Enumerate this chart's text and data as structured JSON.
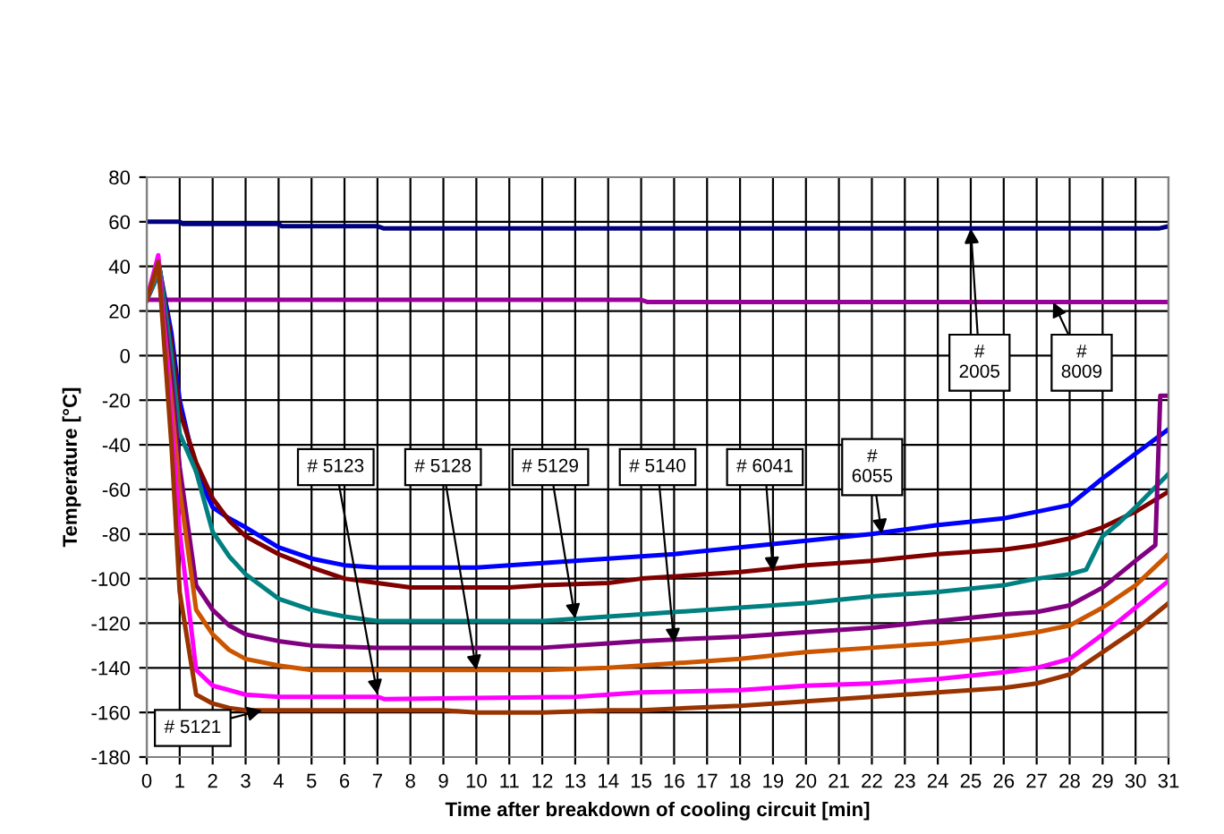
{
  "chart_data": {
    "type": "line",
    "xlabel": "Time after breakdown of cooling circuit [min]",
    "ylabel": "Temperature [°C]",
    "xlim": [
      0,
      31
    ],
    "xticks": [
      0,
      1,
      2,
      3,
      4,
      5,
      6,
      7,
      8,
      9,
      10,
      11,
      12,
      13,
      14,
      15,
      16,
      17,
      18,
      19,
      20,
      21,
      22,
      23,
      24,
      25,
      26,
      27,
      28,
      29,
      30,
      31
    ],
    "ylim": [
      -180,
      80
    ],
    "yticks": [
      -180,
      -160,
      -140,
      -120,
      -100,
      -80,
      -60,
      -40,
      -20,
      0,
      20,
      40,
      60,
      80
    ],
    "grid": true,
    "legend": false,
    "marker": "none",
    "line_style": "solid",
    "series": [
      {
        "color": "#000080",
        "x": [
          0,
          1,
          1.1,
          4,
          4.1,
          7,
          7.2,
          30.7,
          31
        ],
        "values": [
          60,
          60,
          59,
          59,
          58,
          58,
          57,
          57,
          58
        ]
      },
      {
        "color": "#990099",
        "x": [
          0,
          15,
          15.2,
          31
        ],
        "values": [
          25,
          25,
          24,
          24
        ]
      },
      {
        "color": "#0000ff",
        "x": [
          0,
          0.4,
          0.75,
          1,
          1.5,
          2,
          2.5,
          3,
          4,
          5,
          6,
          7,
          10,
          12,
          14,
          16,
          20,
          22,
          24,
          26,
          27,
          28,
          29,
          30,
          31
        ],
        "values": [
          25,
          38,
          10,
          -20,
          -52,
          -68,
          -73,
          -77,
          -86,
          -91,
          -94,
          -95,
          -95,
          -93,
          -91,
          -89,
          -83,
          -80,
          -76,
          -73,
          -70,
          -67,
          -55,
          -44,
          -33
        ]
      },
      {
        "color": "#800000",
        "x": [
          0,
          0.35,
          0.75,
          1,
          1.5,
          2,
          2.5,
          3,
          4,
          5,
          6,
          7,
          8,
          11,
          12,
          14,
          15,
          18,
          20,
          22,
          24,
          26,
          27,
          28,
          29,
          30,
          31
        ],
        "values": [
          25,
          43,
          5,
          -25,
          -48,
          -64,
          -74,
          -81,
          -89,
          -95,
          -100,
          -102,
          -104,
          -104,
          -103,
          -102,
          -100,
          -97,
          -94,
          -92,
          -89,
          -87,
          -85,
          -82,
          -77,
          -70,
          -61
        ]
      },
      {
        "color": "#008080",
        "x": [
          0,
          0.4,
          0.75,
          1,
          1.5,
          2,
          2.5,
          3,
          4,
          5,
          6,
          7,
          10,
          12,
          14,
          15,
          18,
          20,
          22,
          24,
          26,
          27,
          28,
          28.5,
          29,
          29.5,
          30,
          31
        ],
        "values": [
          25,
          38,
          0,
          -35,
          -52,
          -79,
          -90,
          -98,
          -109,
          -114,
          -117,
          -119,
          -119,
          -119,
          -117,
          -116,
          -113,
          -111,
          -108,
          -106,
          -103,
          -100,
          -98,
          -96,
          -81,
          -75,
          -68,
          -53
        ]
      },
      {
        "color": "#800080",
        "x": [
          0,
          0.35,
          0.75,
          1,
          1.5,
          2,
          2.5,
          3,
          4,
          5,
          7,
          12,
          14,
          15,
          18,
          20,
          22,
          24,
          26,
          27,
          28,
          29,
          30,
          30.6,
          30.75,
          31
        ],
        "values": [
          25,
          40,
          -10,
          -50,
          -103,
          -114,
          -121,
          -125,
          -128,
          -130,
          -131,
          -131,
          -129,
          -128,
          -126,
          -124,
          -122,
          -119,
          -116,
          -115,
          -112,
          -104,
          -92,
          -85,
          -18,
          -18
        ]
      },
      {
        "color": "#cc5500",
        "x": [
          0,
          0.35,
          0.75,
          1,
          1.5,
          2,
          2.5,
          3,
          4,
          5,
          7,
          12,
          14,
          15,
          18,
          20,
          22,
          24,
          26,
          27,
          28,
          29,
          30,
          31
        ],
        "values": [
          25,
          40,
          -20,
          -60,
          -114,
          -125,
          -132,
          -136,
          -139,
          -141,
          -141,
          -141,
          -140,
          -139,
          -136,
          -133,
          -131,
          -129,
          -126,
          -124,
          -121,
          -113,
          -103,
          -89
        ]
      },
      {
        "color": "#ff00ff",
        "x": [
          0,
          0.35,
          0.75,
          1,
          1.5,
          2,
          3,
          4,
          7,
          7.2,
          13,
          14,
          15,
          18,
          20,
          22,
          24,
          26,
          27,
          28,
          29,
          30,
          31
        ],
        "values": [
          25,
          45,
          -30,
          -79,
          -141,
          -148,
          -152,
          -153,
          -153,
          -154,
          -153,
          -152,
          -151,
          -150,
          -148,
          -147,
          -145,
          -142,
          -140,
          -136,
          -125,
          -113,
          -101
        ]
      },
      {
        "color": "#993300",
        "x": [
          0,
          0.35,
          0.75,
          1,
          1.5,
          2,
          2.5,
          3,
          5,
          9,
          10,
          12,
          14,
          15,
          18,
          20,
          22,
          24,
          26,
          27,
          28,
          29,
          30,
          31
        ],
        "values": [
          25,
          42,
          -40,
          -106,
          -152,
          -156,
          -158,
          -159,
          -159,
          -159,
          -160,
          -160,
          -159,
          -159,
          -157,
          -155,
          -153,
          -151,
          -149,
          -147,
          -143,
          -133,
          -123,
          -111
        ]
      }
    ],
    "annotations": [
      {
        "text": "# 5121",
        "x": 3.5,
        "y": -159
      },
      {
        "text": "# 5123",
        "x": 7,
        "y": -152
      },
      {
        "text": "# 5128",
        "x": 10,
        "y": -141
      },
      {
        "text": "# 5129",
        "x": 13,
        "y": -118
      },
      {
        "text": "# 5140",
        "x": 16,
        "y": -129
      },
      {
        "text": "# 6041",
        "x": 19,
        "y": -97
      },
      {
        "text": "#\n6055",
        "x": 22.3,
        "y": -80
      },
      {
        "text": "#\n2005",
        "x": 25,
        "y": 57
      },
      {
        "text": "#\n8009",
        "x": 27.5,
        "y": 24
      }
    ]
  }
}
